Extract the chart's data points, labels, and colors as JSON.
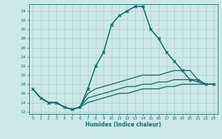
{
  "xlabel": "Humidex (Indice chaleur)",
  "bg_color": "#cce8e8",
  "line_color": "#1a6b6b",
  "grid_color": "#aacccc",
  "xlim": [
    -0.5,
    23.5
  ],
  "ylim": [
    11.5,
    35.5
  ],
  "yticks": [
    12,
    14,
    16,
    18,
    20,
    22,
    24,
    26,
    28,
    30,
    32,
    34
  ],
  "xticks": [
    0,
    1,
    2,
    3,
    4,
    5,
    6,
    7,
    8,
    9,
    10,
    11,
    12,
    13,
    14,
    15,
    16,
    17,
    18,
    19,
    20,
    21,
    22,
    23
  ],
  "curves": [
    {
      "x": [
        0,
        1,
        2,
        3,
        4,
        5,
        6,
        7,
        8,
        9,
        10,
        11,
        12,
        13,
        14,
        15,
        16,
        17,
        18,
        19,
        20,
        21,
        22,
        23
      ],
      "y": [
        17,
        15,
        14,
        14,
        13,
        12.5,
        13,
        17,
        22,
        25,
        31,
        33,
        34,
        35,
        35,
        30,
        28,
        25,
        23,
        21,
        19,
        19,
        18,
        18
      ],
      "marker": "x",
      "ms": 3,
      "lw": 1.2
    },
    {
      "x": [
        0,
        1,
        2,
        3,
        4,
        5,
        6,
        7,
        8,
        9,
        10,
        11,
        12,
        13,
        14,
        15,
        16,
        17,
        18,
        19,
        20,
        21,
        22,
        23
      ],
      "y": [
        17,
        15,
        14,
        14,
        13,
        12.5,
        13,
        16,
        17,
        17.5,
        18,
        18.5,
        19,
        19.5,
        20,
        20,
        20,
        20.5,
        21,
        21,
        21,
        19,
        18,
        18
      ],
      "marker": null,
      "ms": 0,
      "lw": 1.0
    },
    {
      "x": [
        0,
        1,
        2,
        3,
        4,
        5,
        6,
        7,
        8,
        9,
        10,
        11,
        12,
        13,
        14,
        15,
        16,
        17,
        18,
        19,
        20,
        21,
        22,
        23
      ],
      "y": [
        17,
        15,
        14,
        14,
        13,
        12.5,
        13,
        15,
        15.5,
        16,
        16.5,
        17,
        17.5,
        17.5,
        18,
        18,
        18.5,
        18.5,
        19,
        19,
        19,
        18.5,
        18,
        18
      ],
      "marker": null,
      "ms": 0,
      "lw": 1.0
    },
    {
      "x": [
        0,
        1,
        2,
        3,
        4,
        5,
        6,
        7,
        8,
        9,
        10,
        11,
        12,
        13,
        14,
        15,
        16,
        17,
        18,
        19,
        20,
        21,
        22,
        23
      ],
      "y": [
        17,
        15,
        14,
        14,
        13,
        12.5,
        13,
        14,
        14.5,
        15,
        15.5,
        16,
        16,
        16.5,
        17,
        17,
        17,
        17.5,
        17.5,
        18,
        18,
        18,
        18,
        18
      ],
      "marker": null,
      "ms": 0,
      "lw": 1.0
    }
  ]
}
